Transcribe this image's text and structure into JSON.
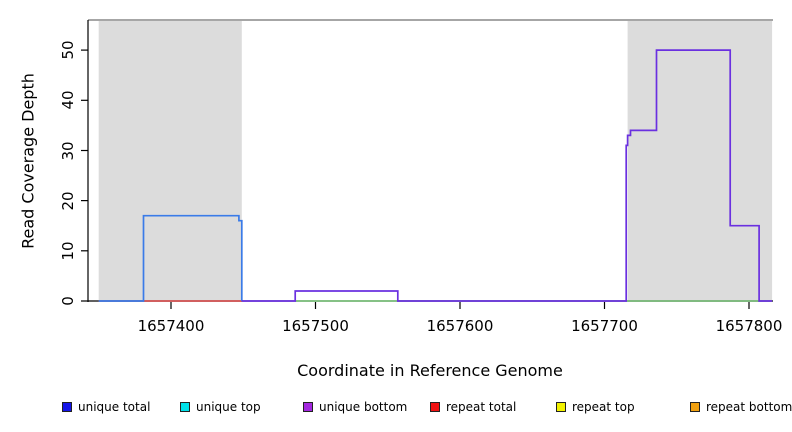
{
  "figure": {
    "x_title": "Coordinate in Reference Genome",
    "y_title": "Read Coverage Depth"
  },
  "chart_data": {
    "type": "line",
    "subtype": "step-coverage-plot",
    "title": "",
    "xlabel": "Coordinate in Reference Genome",
    "ylabel": "Read Coverage Depth",
    "grid": false,
    "background_color": "#ffffff",
    "plot_border_color": "#707070",
    "axis_color": "#000000",
    "x_range": [
      1657342.6,
      1657816.6
    ],
    "y_range": [
      0,
      56
    ],
    "x_ticks": [
      {
        "value": 1657400,
        "label": "1657400"
      },
      {
        "value": 1657500,
        "label": "1657500"
      },
      {
        "value": 1657600,
        "label": "1657600"
      },
      {
        "value": 1657700,
        "label": "1657700"
      },
      {
        "value": 1657800,
        "label": "1657800"
      }
    ],
    "y_ticks": [
      {
        "value": 0,
        "label": "0"
      },
      {
        "value": 10,
        "label": "10"
      },
      {
        "value": 20,
        "label": "20"
      },
      {
        "value": 30,
        "label": "30"
      },
      {
        "value": 40,
        "label": "40"
      },
      {
        "value": 50,
        "label": "50"
      }
    ],
    "shaded_regions": [
      {
        "name": "repeat-region-left",
        "x1": 1657350,
        "x2": 1657449,
        "color": "#dcdcdc"
      },
      {
        "name": "repeat-region-right",
        "x1": 1657716,
        "x2": 1657816,
        "color": "#dcdcdc"
      }
    ],
    "series": [
      {
        "name": "repeat total",
        "color": "#e04848",
        "width": 1.4,
        "steps": [
          [
            1657350,
            0
          ],
          [
            1657449,
            0
          ]
        ]
      },
      {
        "name": "baseline green",
        "color": "#74c274",
        "width": 1.4,
        "steps": [
          [
            1657486,
            0
          ],
          [
            1657816,
            0
          ]
        ]
      },
      {
        "name": "unique total",
        "color": "#3a7be8",
        "width": 1.7,
        "steps": [
          [
            1657350,
            0
          ],
          [
            1657381,
            17
          ],
          [
            1657447,
            16
          ],
          [
            1657449,
            0
          ]
        ]
      },
      {
        "name": "unique bottom",
        "color": "#6a30e0",
        "width": 1.7,
        "steps": [
          [
            1657449,
            0
          ],
          [
            1657486,
            2
          ],
          [
            1657557,
            0
          ],
          [
            1657715,
            31
          ],
          [
            1657716,
            33
          ],
          [
            1657718,
            34
          ],
          [
            1657736,
            50
          ],
          [
            1657787,
            15
          ],
          [
            1657807,
            0
          ],
          [
            1657816,
            0
          ]
        ]
      }
    ]
  },
  "legend": {
    "items": [
      {
        "label": "unique total",
        "color": "#1515e8"
      },
      {
        "label": "unique top",
        "color": "#00e0e8"
      },
      {
        "label": "unique bottom",
        "color": "#a428e0"
      },
      {
        "label": "repeat total",
        "color": "#ee1111"
      },
      {
        "label": "repeat top",
        "color": "#f2f200"
      },
      {
        "label": "repeat bottom",
        "color": "#f0a010"
      }
    ]
  }
}
